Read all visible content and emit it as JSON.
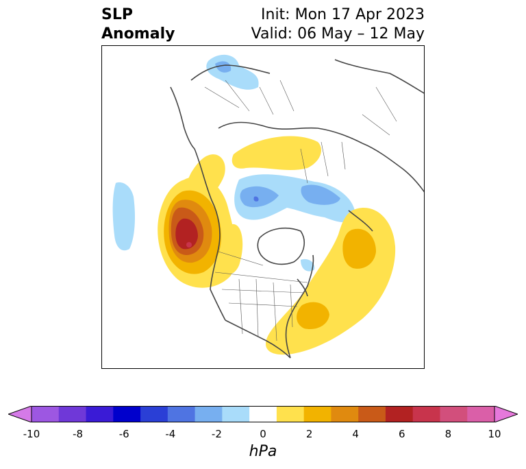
{
  "title": {
    "left_line1": "SLP",
    "left_line2": "Anomaly",
    "right_line1": "Init: Mon 17 Apr 2023",
    "right_line2": "Valid: 06 May – 12 May"
  },
  "colorbar": {
    "label": "hPa",
    "colors": [
      "#d57ae8",
      "#9d57e2",
      "#6f38d8",
      "#3a1bd6",
      "#0000cc",
      "#2a3fd6",
      "#4f74e2",
      "#77aff0",
      "#a9dcfa",
      "#ffffff",
      "#ffe14d",
      "#f2b300",
      "#e08a0f",
      "#c95a18",
      "#b22222",
      "#c8344c",
      "#d24f7c",
      "#da5fa8",
      "#e678db"
    ],
    "ticks": [
      "-10",
      "-8",
      "-6",
      "-4",
      "-2",
      "0",
      "2",
      "4",
      "6",
      "8",
      "10"
    ]
  }
}
